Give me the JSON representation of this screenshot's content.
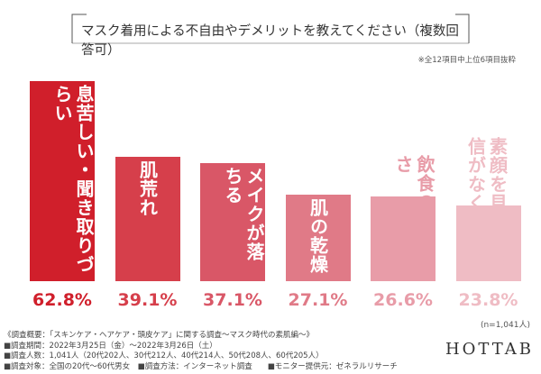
{
  "chart_data": {
    "type": "bar",
    "title": "マスク着用による不自由やデメリットを教えてください（複数回答可）",
    "note": "※全12項目中上位6項目抜粋",
    "categories": [
      "息苦しい・聞き取りづらい",
      "肌荒れ",
      "メイクが落ちる",
      "肌の乾燥",
      "飲食のしづらさ",
      "素顔を見せる自信がなくなった"
    ],
    "values": [
      62.8,
      39.1,
      37.1,
      27.1,
      26.6,
      23.8
    ],
    "value_labels": [
      "62.8%",
      "39.1%",
      "37.1%",
      "27.1%",
      "26.6%",
      "23.8%"
    ],
    "colors": [
      "#d01f2b",
      "#d63f4b",
      "#d95767",
      "#e07a87",
      "#e89ca8",
      "#efbcc4"
    ],
    "sample_size": "(n=1,041人)",
    "footnotes": [
      "《調査概要：「スキンケア・ヘアケア・頭皮ケア」に関する調査～マスク時代の素肌編～》",
      "■調査期間：2022年3月25日（金）～2022年3月26日（土）",
      "■調査人数：1,041人（20代202人、30代212人、40代214人、50代208人、60代205人）",
      "■調査対象：全国の20代〜60代男女　■調査方法：インターネット調査　　■モニター提供元：ゼネラルリサーチ"
    ],
    "logo": "HOTTAB"
  }
}
